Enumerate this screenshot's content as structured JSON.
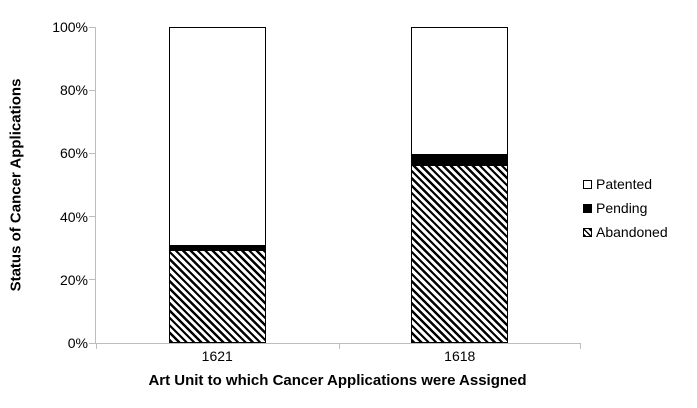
{
  "figure": {
    "background": "#ffffff",
    "axis_color": "#bdbdbd",
    "ink_color": "#000000"
  },
  "chart_data": {
    "type": "bar",
    "stacked": true,
    "orientation": "vertical",
    "title": "",
    "xlabel": "Art Unit to which Cancer Applications were Assigned",
    "ylabel": "Status of Cancer Applications",
    "categories": [
      "1621",
      "1618"
    ],
    "series": [
      {
        "name": "Abandoned",
        "values": [
          29,
          56
        ],
        "pattern": "diagonal-hatch",
        "color": "#000000 on #ffffff"
      },
      {
        "name": "Pending",
        "values": [
          2,
          4
        ],
        "pattern": "solid-black",
        "color": "#000000"
      },
      {
        "name": "Patented",
        "values": [
          69,
          40
        ],
        "pattern": "white",
        "color": "#ffffff"
      }
    ],
    "ylim": [
      0,
      100
    ],
    "y_ticks": [
      "0%",
      "20%",
      "40%",
      "60%",
      "80%",
      "100%"
    ],
    "x_tick_count": 3,
    "grid": false,
    "legend_position": "right",
    "legend_order": [
      "Patented",
      "Pending",
      "Abandoned"
    ]
  }
}
